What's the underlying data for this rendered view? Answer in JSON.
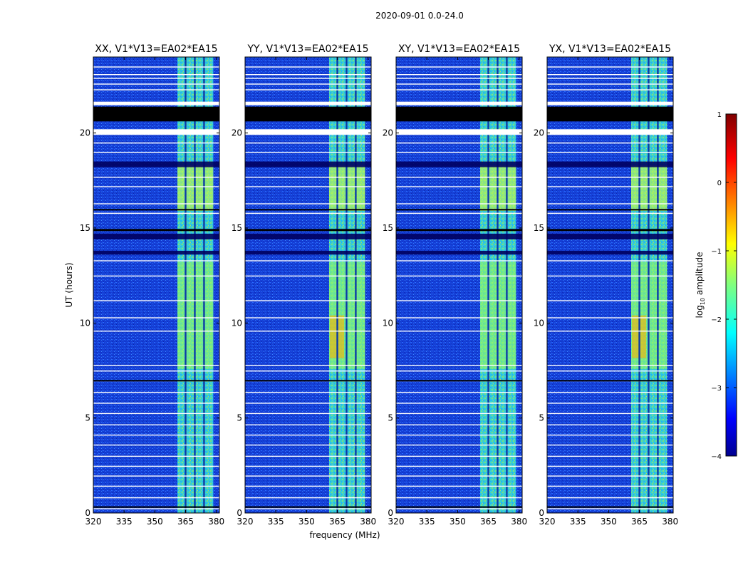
{
  "chart_data": {
    "type": "heatmap",
    "title": "2020-09-01 0.0-24.0",
    "xlabel": "frequency (MHz)",
    "ylabel": "UT (hours)",
    "xlim": [
      320,
      381.5
    ],
    "ylim": [
      0,
      24
    ],
    "x_ticks": [
      320,
      335,
      350,
      365,
      380
    ],
    "y_ticks": [
      0,
      5,
      10,
      15,
      20
    ],
    "panels": [
      {
        "title": "XX, V1*V13=EA02*EA15"
      },
      {
        "title": "YY, V1*V13=EA02*EA15"
      },
      {
        "title": "XY, V1*V13=EA02*EA15"
      },
      {
        "title": "YX, V1*V13=EA02*EA15"
      }
    ],
    "colorbar": {
      "label": "log",
      "label_sub": "10",
      "label_rest": " amplitude",
      "colormap": "jet",
      "range": [
        -4,
        1
      ],
      "ticks": [
        1,
        0,
        -1,
        -2,
        -3,
        -4
      ],
      "tick_labels": [
        "1",
        "0",
        "−1",
        "−2",
        "−3",
        "−4"
      ]
    },
    "bright_band_mhz": [
      361,
      378.5
    ],
    "channel_dividers_mhz": [
      365,
      369.5,
      374
    ],
    "blank_band_hours": [
      21.5,
      20.5
    ],
    "dark_bands_hours": [
      [
        18.5,
        18.2
      ],
      [
        14.7,
        14.4
      ],
      [
        13.8,
        13.6
      ]
    ]
  }
}
